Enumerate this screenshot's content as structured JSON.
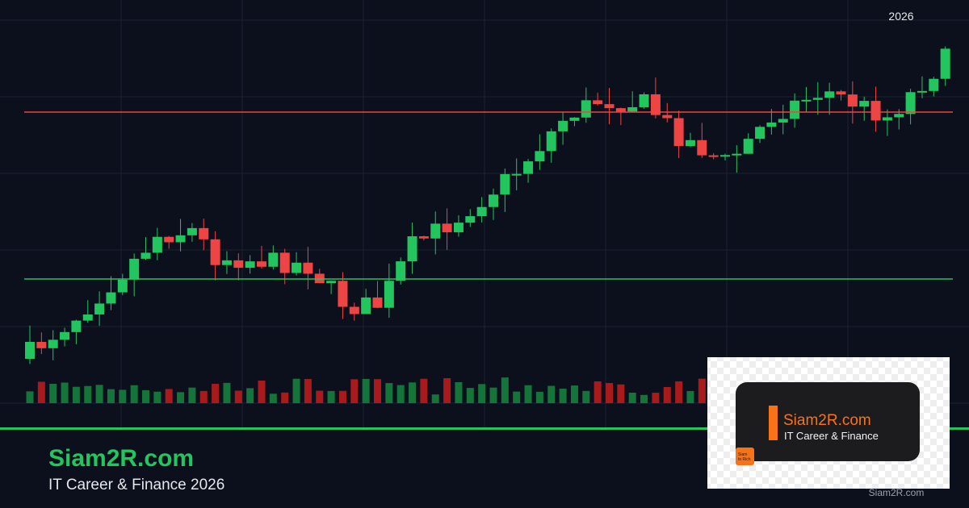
{
  "header": {
    "year": "2026"
  },
  "brand": {
    "title": "Siam2R.com",
    "subtitle": "IT Career & Finance 2026"
  },
  "logo": {
    "name": "Siam2R.com",
    "tagline": "IT Career & Finance",
    "badge": [
      "Siam",
      "to Rich"
    ]
  },
  "watermark": "Siam2R.com"
}
